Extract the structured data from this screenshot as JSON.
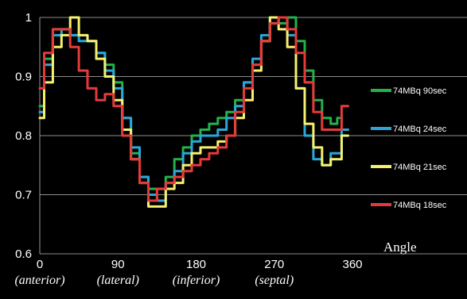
{
  "chart_data": {
    "type": "line",
    "title": "",
    "xlabel": "Angle",
    "ylabel": "",
    "xlim": [
      0,
      360
    ],
    "ylim": [
      0.6,
      1.0
    ],
    "grid": true,
    "legend_position": "right",
    "x_ticks": [
      0,
      90,
      180,
      270,
      360
    ],
    "x_tick_labels": [
      "0",
      "90",
      "180",
      "270",
      "360"
    ],
    "x_category_labels": [
      "(anterior)",
      "(lateral)",
      "(inferior)",
      "(septal)"
    ],
    "y_ticks": [
      0.6,
      0.7,
      0.8,
      0.9,
      1.0
    ],
    "y_tick_labels": [
      "0.6",
      "0.7",
      "0.8",
      "0.9",
      "1"
    ],
    "series": [
      {
        "name": "74MBq 90sec",
        "color": "#22b14c",
        "x": [
          0,
          10,
          20,
          30,
          40,
          50,
          60,
          70,
          80,
          90,
          100,
          110,
          120,
          130,
          140,
          150,
          160,
          170,
          180,
          190,
          200,
          210,
          220,
          230,
          240,
          250,
          260,
          270,
          280,
          290,
          300,
          310,
          320,
          330,
          340,
          345
        ],
        "y": [
          0.85,
          0.93,
          0.98,
          0.98,
          0.97,
          0.97,
          0.96,
          0.94,
          0.92,
          0.89,
          0.83,
          0.77,
          0.73,
          0.71,
          0.71,
          0.73,
          0.76,
          0.78,
          0.8,
          0.81,
          0.82,
          0.83,
          0.84,
          0.86,
          0.89,
          0.92,
          0.96,
          0.99,
          0.99,
          1.0,
          0.96,
          0.91,
          0.86,
          0.83,
          0.82,
          0.83
        ]
      },
      {
        "name": "74MBq 24sec",
        "color": "#2aa7d8",
        "x": [
          0,
          10,
          20,
          30,
          40,
          50,
          60,
          70,
          80,
          90,
          100,
          110,
          120,
          130,
          140,
          150,
          160,
          170,
          180,
          190,
          200,
          210,
          220,
          230,
          240,
          250,
          260,
          270,
          280,
          290,
          300,
          310,
          320,
          330,
          340,
          355
        ],
        "y": [
          0.84,
          0.92,
          0.97,
          0.98,
          0.97,
          0.96,
          0.96,
          0.94,
          0.91,
          0.88,
          0.83,
          0.78,
          0.73,
          0.7,
          0.69,
          0.72,
          0.74,
          0.77,
          0.79,
          0.8,
          0.8,
          0.81,
          0.83,
          0.85,
          0.89,
          0.93,
          0.97,
          1.0,
          1.0,
          0.97,
          0.88,
          0.8,
          0.76,
          0.75,
          0.77,
          0.81
        ]
      },
      {
        "name": "74MBq 21sec",
        "color": "#f5f06e",
        "x": [
          0,
          10,
          20,
          30,
          40,
          50,
          60,
          70,
          80,
          90,
          100,
          110,
          120,
          130,
          140,
          150,
          160,
          170,
          180,
          190,
          200,
          210,
          220,
          230,
          240,
          250,
          260,
          270,
          280,
          290,
          300,
          310,
          320,
          330,
          340,
          355
        ],
        "y": [
          0.83,
          0.89,
          0.95,
          0.97,
          1.0,
          0.97,
          0.96,
          0.93,
          0.9,
          0.86,
          0.81,
          0.76,
          0.72,
          0.68,
          0.68,
          0.71,
          0.72,
          0.75,
          0.77,
          0.78,
          0.78,
          0.79,
          0.8,
          0.83,
          0.86,
          0.91,
          0.96,
          1.0,
          0.98,
          0.95,
          0.88,
          0.82,
          0.78,
          0.75,
          0.76,
          0.8
        ]
      },
      {
        "name": "74MBq 18sec",
        "color": "#e53a3a",
        "x": [
          0,
          10,
          20,
          30,
          40,
          50,
          60,
          70,
          80,
          90,
          100,
          110,
          120,
          130,
          140,
          150,
          160,
          170,
          180,
          190,
          200,
          210,
          220,
          230,
          240,
          250,
          260,
          270,
          280,
          290,
          300,
          310,
          320,
          330,
          340,
          355
        ],
        "y": [
          0.88,
          0.94,
          0.98,
          0.98,
          0.95,
          0.91,
          0.88,
          0.86,
          0.87,
          0.85,
          0.8,
          0.76,
          0.72,
          0.69,
          0.71,
          0.72,
          0.73,
          0.74,
          0.75,
          0.76,
          0.77,
          0.78,
          0.8,
          0.84,
          0.88,
          0.92,
          0.96,
          0.99,
          1.0,
          0.98,
          0.94,
          0.89,
          0.84,
          0.81,
          0.81,
          0.85
        ]
      }
    ]
  }
}
